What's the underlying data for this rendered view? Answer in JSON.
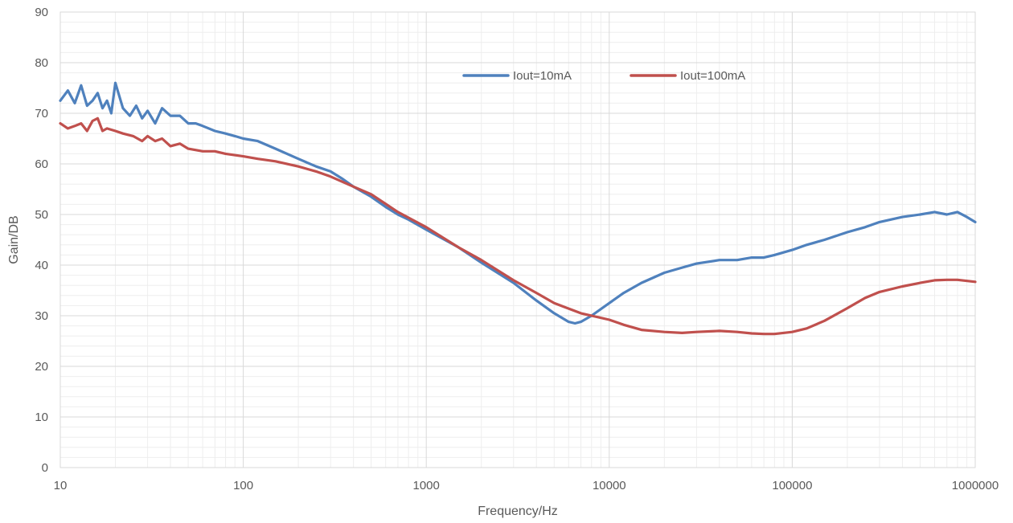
{
  "chart_data": {
    "type": "line",
    "title": "",
    "xlabel": "Frequency/Hz",
    "ylabel": "Gain/DB",
    "x_scale": "log",
    "xlim": [
      10,
      1000000
    ],
    "ylim": [
      0,
      90
    ],
    "x_ticks": [
      "10",
      "100",
      "1000",
      "10000",
      "100000",
      "1000000"
    ],
    "y_ticks": [
      "0",
      "10",
      "20",
      "30",
      "40",
      "50",
      "60",
      "70",
      "80",
      "90"
    ],
    "grid": true,
    "legend_position": "top-center",
    "series": [
      {
        "name": "Iout=10mA",
        "color": "#4f81bd",
        "x": [
          10,
          11,
          12,
          13,
          14,
          15,
          16,
          17,
          18,
          19,
          20,
          22,
          24,
          26,
          28,
          30,
          33,
          36,
          40,
          45,
          50,
          55,
          60,
          70,
          80,
          90,
          100,
          120,
          150,
          200,
          250,
          300,
          350,
          400,
          500,
          600,
          700,
          800,
          1000,
          1500,
          2000,
          3000,
          4000,
          5000,
          6000,
          6500,
          7000,
          8000,
          10000,
          12000,
          15000,
          20000,
          25000,
          30000,
          40000,
          50000,
          60000,
          70000,
          80000,
          100000,
          120000,
          150000,
          200000,
          250000,
          300000,
          400000,
          500000,
          600000,
          700000,
          800000,
          900000,
          1000000
        ],
        "values": [
          72.5,
          74.5,
          72,
          75.5,
          71.5,
          72.5,
          74,
          71,
          72.5,
          70,
          76,
          71,
          69.5,
          71.5,
          69,
          70.5,
          68,
          71,
          69.5,
          69.5,
          68,
          68,
          67.5,
          66.5,
          66,
          65.5,
          65,
          64.5,
          63,
          61,
          59.5,
          58.5,
          57,
          55.5,
          53.5,
          51.5,
          50,
          49,
          47,
          43.5,
          40.5,
          36.5,
          33,
          30.5,
          28.8,
          28.5,
          28.8,
          30,
          32.5,
          34.5,
          36.5,
          38.5,
          39.5,
          40.3,
          41,
          41,
          41.5,
          41.5,
          42,
          43,
          44,
          45,
          46.5,
          47.5,
          48.5,
          49.5,
          50,
          50.5,
          50,
          50.5,
          49.5,
          48.5
        ]
      },
      {
        "name": "Iout=100mA",
        "color": "#c0504d",
        "x": [
          10,
          11,
          12,
          13,
          14,
          15,
          16,
          17,
          18,
          20,
          22,
          25,
          28,
          30,
          33,
          36,
          40,
          45,
          50,
          60,
          70,
          80,
          100,
          120,
          150,
          200,
          250,
          300,
          400,
          500,
          700,
          1000,
          1500,
          2000,
          3000,
          4000,
          5000,
          7000,
          10000,
          12000,
          15000,
          20000,
          25000,
          30000,
          40000,
          50000,
          60000,
          70000,
          80000,
          100000,
          120000,
          150000,
          200000,
          250000,
          300000,
          400000,
          500000,
          600000,
          700000,
          800000,
          1000000
        ],
        "values": [
          68,
          67,
          67.5,
          68,
          66.5,
          68.5,
          69,
          66.5,
          67,
          66.5,
          66,
          65.5,
          64.5,
          65.5,
          64.5,
          65,
          63.5,
          64,
          63,
          62.5,
          62.5,
          62,
          61.5,
          61,
          60.5,
          59.5,
          58.5,
          57.5,
          55.5,
          54,
          50.5,
          47.5,
          43.5,
          41,
          37,
          34.5,
          32.5,
          30.5,
          29.2,
          28.2,
          27.2,
          26.8,
          26.6,
          26.8,
          27,
          26.8,
          26.5,
          26.4,
          26.4,
          26.8,
          27.5,
          29,
          31.5,
          33.5,
          34.7,
          35.8,
          36.5,
          37,
          37.1,
          37.1,
          36.7
        ]
      }
    ]
  }
}
